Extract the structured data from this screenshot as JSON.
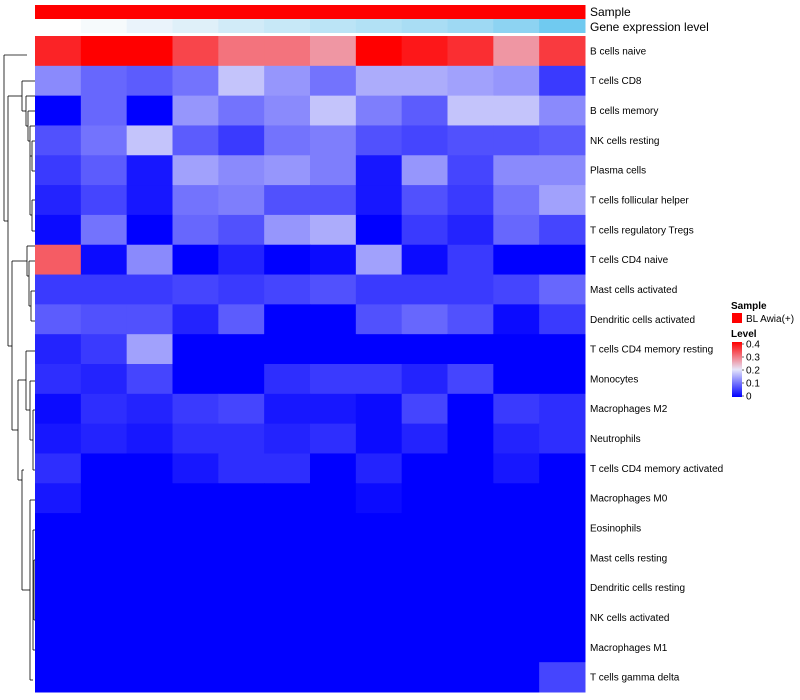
{
  "chart_data": {
    "type": "heatmap",
    "annotation_rows": [
      "Sample",
      "Gene expression level"
    ],
    "sample_colors": "#ff0000",
    "gene_expression_colors": [
      "#ffffff",
      "#f6fafc",
      "#eaf3fb",
      "#dff0f9",
      "#d1ebf8",
      "#c7e8f7",
      "#bbe4f6",
      "#b2e1f5",
      "#a9ddf4",
      "#9ed9f3",
      "#8dd3f2",
      "#70caf0"
    ],
    "rows": [
      "B cells naive",
      "T cells CD8",
      "B cells memory",
      "NK cells resting",
      "Plasma cells",
      "T cells follicular helper",
      "T cells regulatory  Tregs",
      "T cells CD4 naive",
      "Mast cells activated",
      "Dendritic cells activated",
      "T cells CD4 memory resting",
      "Monocytes",
      "Macrophages M2",
      "Neutrophils",
      "T cells CD4 memory activated",
      "Macrophages M0",
      "Eosinophils",
      "Mast cells resting",
      "Dendritic cells resting",
      "NK cells activated",
      "Macrophages M1",
      "T cells gamma delta"
    ],
    "values": [
      [
        0.37,
        0.4,
        0.4,
        0.34,
        0.3,
        0.3,
        0.27,
        0.4,
        0.38,
        0.36,
        0.27,
        0.35
      ],
      [
        0.12,
        0.09,
        0.08,
        0.1,
        0.17,
        0.13,
        0.1,
        0.15,
        0.15,
        0.14,
        0.13,
        0.05
      ],
      [
        0.0,
        0.09,
        0.0,
        0.13,
        0.1,
        0.12,
        0.17,
        0.11,
        0.08,
        0.17,
        0.17,
        0.12
      ],
      [
        0.07,
        0.1,
        0.17,
        0.08,
        0.05,
        0.1,
        0.11,
        0.07,
        0.06,
        0.07,
        0.07,
        0.08
      ],
      [
        0.05,
        0.08,
        0.02,
        0.14,
        0.12,
        0.13,
        0.11,
        0.02,
        0.13,
        0.06,
        0.12,
        0.12
      ],
      [
        0.03,
        0.06,
        0.02,
        0.1,
        0.11,
        0.07,
        0.07,
        0.02,
        0.07,
        0.05,
        0.1,
        0.14
      ],
      [
        0.01,
        0.1,
        0.0,
        0.09,
        0.07,
        0.13,
        0.15,
        0.0,
        0.05,
        0.03,
        0.09,
        0.06
      ],
      [
        0.32,
        0.01,
        0.12,
        0.0,
        0.03,
        0.0,
        0.01,
        0.14,
        0.01,
        0.05,
        0.0,
        0.0
      ],
      [
        0.05,
        0.05,
        0.05,
        0.06,
        0.05,
        0.06,
        0.07,
        0.05,
        0.05,
        0.05,
        0.06,
        0.09
      ],
      [
        0.08,
        0.07,
        0.07,
        0.03,
        0.08,
        0.0,
        0.0,
        0.07,
        0.09,
        0.07,
        0.01,
        0.05
      ],
      [
        0.03,
        0.05,
        0.14,
        0.0,
        0.0,
        0.0,
        0.0,
        0.0,
        0.0,
        0.0,
        0.0,
        0.0
      ],
      [
        0.04,
        0.03,
        0.06,
        0.0,
        0.0,
        0.04,
        0.05,
        0.05,
        0.03,
        0.06,
        0.0,
        0.0
      ],
      [
        0.01,
        0.04,
        0.03,
        0.05,
        0.06,
        0.02,
        0.02,
        0.01,
        0.06,
        0.0,
        0.05,
        0.04
      ],
      [
        0.02,
        0.03,
        0.02,
        0.04,
        0.04,
        0.03,
        0.04,
        0.01,
        0.03,
        0.0,
        0.03,
        0.04
      ],
      [
        0.04,
        0.0,
        0.0,
        0.02,
        0.04,
        0.04,
        0.0,
        0.03,
        0.0,
        0.0,
        0.02,
        0.0
      ],
      [
        0.02,
        0.0,
        0.0,
        0.0,
        0.0,
        0.0,
        0.0,
        0.01,
        0.0,
        0.0,
        0.0,
        0.0
      ],
      [
        0.0,
        0.0,
        0.0,
        0.0,
        0.0,
        0.0,
        0.0,
        0.0,
        0.0,
        0.0,
        0.0,
        0.0
      ],
      [
        0.0,
        0.0,
        0.0,
        0.0,
        0.0,
        0.0,
        0.0,
        0.0,
        0.0,
        0.0,
        0.0,
        0.0
      ],
      [
        0.0,
        0.0,
        0.0,
        0.0,
        0.0,
        0.0,
        0.0,
        0.0,
        0.0,
        0.0,
        0.0,
        0.0
      ],
      [
        0.0,
        0.0,
        0.0,
        0.0,
        0.0,
        0.0,
        0.0,
        0.0,
        0.0,
        0.0,
        0.0,
        0.0
      ],
      [
        0.0,
        0.0,
        0.0,
        0.0,
        0.0,
        0.0,
        0.0,
        0.0,
        0.0,
        0.0,
        0.0,
        0.0
      ],
      [
        0.0,
        0.0,
        0.0,
        0.0,
        0.0,
        0.0,
        0.0,
        0.0,
        0.0,
        0.0,
        0.0,
        0.06
      ]
    ],
    "color_scale": {
      "min": 0,
      "mid": 0.2,
      "max": 0.4,
      "low": "#0000ff",
      "midcolor": "#e6e6fa",
      "high": "#ff0000"
    },
    "legend": {
      "sample_title": "Sample",
      "sample_entry": "BL Awia(+)",
      "sample_color": "#ff0000",
      "level_title": "Level",
      "level_ticks": [
        "0.4",
        "0.3",
        "0.2",
        "0.1",
        "0"
      ],
      "level_tick_values": [
        0.4,
        0.3,
        0.2,
        0.1,
        0
      ]
    }
  }
}
